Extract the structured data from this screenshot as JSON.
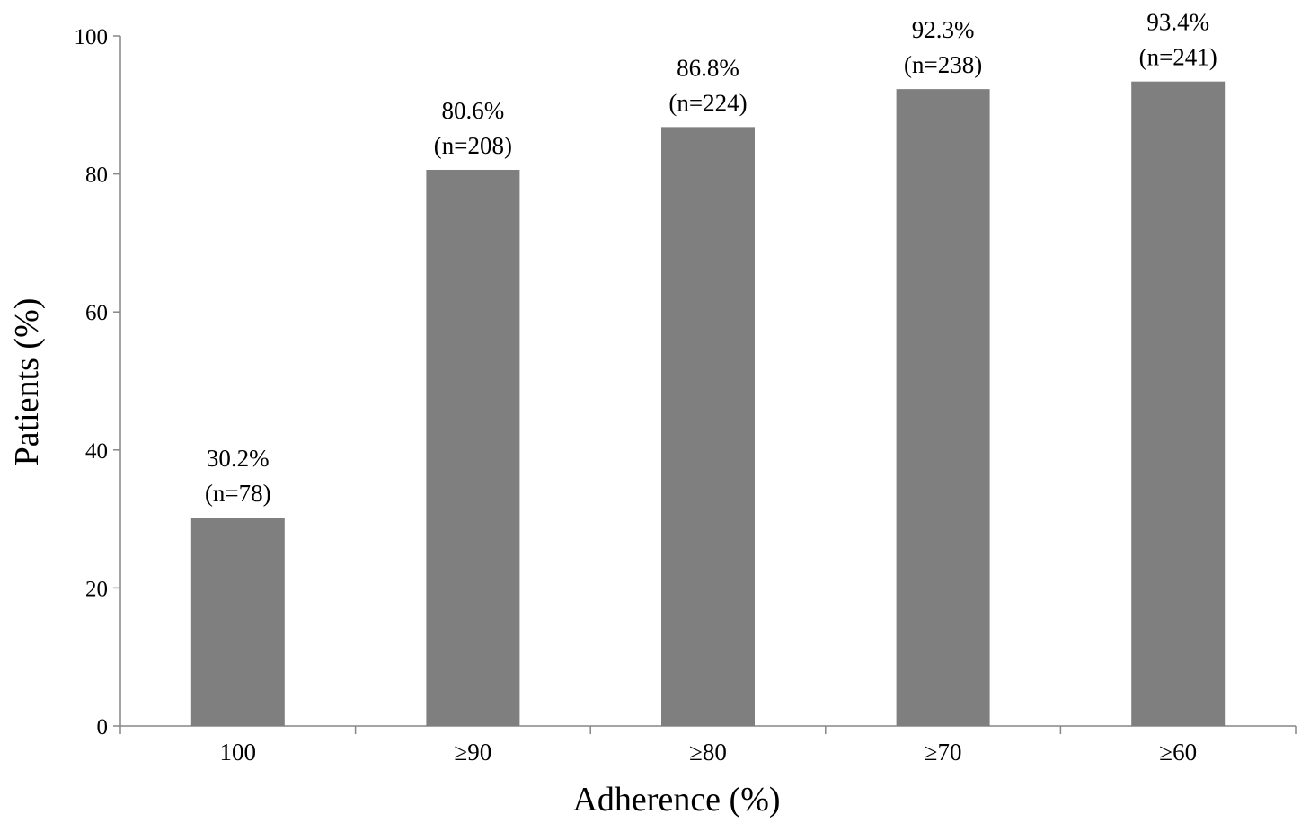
{
  "chart_data": {
    "type": "bar",
    "xlabel": "Adherence (%)",
    "ylabel": "Patients (%)",
    "ylim": [
      0,
      100
    ],
    "yticks": [
      "0",
      "20",
      "40",
      "60",
      "80",
      "100"
    ],
    "grid": false,
    "categories": [
      "100",
      "≥90",
      "≥80",
      "≥70",
      "≥60"
    ],
    "values": [
      30.2,
      80.6,
      86.8,
      92.3,
      93.4
    ],
    "data_labels": [
      {
        "pct": "30.2%",
        "n": "(n=78)"
      },
      {
        "pct": "80.6%",
        "n": "(n=208)"
      },
      {
        "pct": "86.8%",
        "n": "(n=224)"
      },
      {
        "pct": "92.3%",
        "n": "(n=238)"
      },
      {
        "pct": "93.4%",
        "n": "(n=241)"
      }
    ],
    "colors": {
      "bar": "#7f7f7f",
      "axis": "#868686",
      "text": "#000000"
    }
  }
}
